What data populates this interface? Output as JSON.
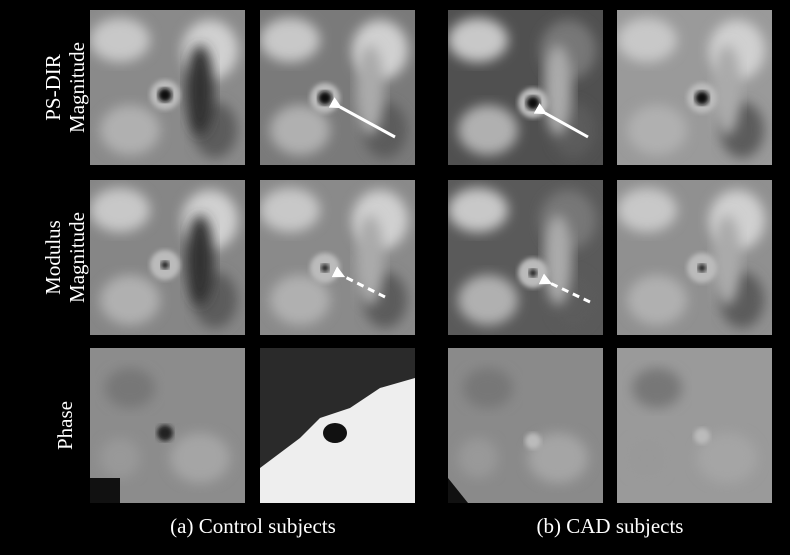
{
  "rows": [
    {
      "label_lines": [
        "PS-DIR",
        "Magnitude"
      ]
    },
    {
      "label_lines": [
        "Modulus",
        "Magnitude"
      ]
    },
    {
      "label_lines": [
        "Phase"
      ]
    }
  ],
  "captions": [
    "(a) Control subjects",
    "(b) CAD subjects"
  ]
}
